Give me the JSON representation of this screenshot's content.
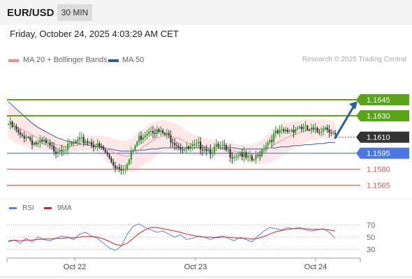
{
  "header": {
    "symbol": "EUR/USD",
    "timeframe": "30 MIN"
  },
  "datetime": "Friday, October 24, 2025 4:03:29 AM CET",
  "legend": {
    "ma20": {
      "label": "MA 20 + Bollinger Bands",
      "color": "#f08f8f"
    },
    "ma50": {
      "label": "MA 50",
      "color": "#2f5b9a"
    },
    "credit": "Research © 2025 Trading Central"
  },
  "rsi_legend": {
    "rsi": {
      "label": "RSI",
      "color": "#5b82d6"
    },
    "ma9": {
      "label": "9MA",
      "color": "#e02020"
    }
  },
  "colors": {
    "resistance": "#5aa41a",
    "support": "#4a78e0",
    "pivot_support": "#e05a5a",
    "up_candle": "#2f9a2f",
    "down_candle": "#333333",
    "arrow": "#2f5b9a",
    "band_fill": "#fde3e3"
  },
  "chart_data": [
    {
      "type": "candlestick",
      "title": "EUR/USD 30 MIN",
      "ylim": [
        1.1557,
        1.1673
      ],
      "x_ticks": [
        "Oct 22",
        "Oct 23",
        "Oct 24"
      ],
      "levels": [
        {
          "value": 1.1645,
          "label": "1.1645",
          "kind": "resistance"
        },
        {
          "value": 1.163,
          "label": "1.1630",
          "kind": "resistance"
        },
        {
          "value": 1.161,
          "label": "1.1610",
          "kind": "last"
        },
        {
          "value": 1.1595,
          "label": "1.1595",
          "kind": "support"
        },
        {
          "value": 1.158,
          "label": "1.1580",
          "kind": "pivot_support"
        },
        {
          "value": 1.1565,
          "label": "1.1565",
          "kind": "pivot_support"
        }
      ],
      "target_arrow": {
        "from": 1.161,
        "to": 1.1645
      },
      "price_path": [
        1.1622,
        1.1618,
        1.161,
        1.1612,
        1.1606,
        1.1603,
        1.1605,
        1.16,
        1.1598,
        1.1601,
        1.16,
        1.1604,
        1.1606,
        1.1607,
        1.1605,
        1.1601,
        1.1598,
        1.159,
        1.1583,
        1.1582,
        1.1584,
        1.1598,
        1.1609,
        1.1614,
        1.1619,
        1.1615,
        1.1613,
        1.161,
        1.1606,
        1.1601,
        1.1598,
        1.16,
        1.1602,
        1.1601,
        1.1598,
        1.16,
        1.16,
        1.1596,
        1.1593,
        1.1596,
        1.159,
        1.1588,
        1.1592,
        1.1602,
        1.1608,
        1.1613,
        1.1614,
        1.1616,
        1.1618,
        1.162,
        1.1617,
        1.1616,
        1.1615,
        1.162,
        1.1618,
        1.1611
      ],
      "ma20": [
        1.1625,
        1.1621,
        1.1618,
        1.1615,
        1.1612,
        1.1609,
        1.1607,
        1.1605,
        1.1603,
        1.1602,
        1.1601,
        1.1602,
        1.1603,
        1.1604,
        1.1604,
        1.1603,
        1.1601,
        1.1598,
        1.1595,
        1.1593,
        1.1592,
        1.1594,
        1.1598,
        1.1602,
        1.1606,
        1.1609,
        1.1611,
        1.1611,
        1.161,
        1.1608,
        1.1605,
        1.1603,
        1.1602,
        1.1601,
        1.16,
        1.16,
        1.1599,
        1.1598,
        1.1597,
        1.1596,
        1.1595,
        1.1594,
        1.1595,
        1.1597,
        1.16,
        1.1604,
        1.1607,
        1.161,
        1.1612,
        1.1614,
        1.1616,
        1.1617,
        1.1617,
        1.1618,
        1.1617,
        1.1615
      ],
      "ma50": [
        1.1643,
        1.1638,
        1.1633,
        1.1628,
        1.1623,
        1.1619,
        1.1616,
        1.1613,
        1.161,
        1.1608,
        1.1606,
        1.1605,
        1.1604,
        1.1603,
        1.1602,
        1.1601,
        1.16,
        1.1599,
        1.1598,
        1.1597,
        1.1597,
        1.1597,
        1.1598,
        1.1598,
        1.1599,
        1.1599,
        1.16,
        1.16,
        1.16,
        1.16,
        1.16,
        1.16,
        1.16,
        1.16,
        1.16,
        1.16,
        1.16,
        1.16,
        1.16,
        1.1599,
        1.1599,
        1.1599,
        1.1599,
        1.1599,
        1.16,
        1.16,
        1.1601,
        1.1601,
        1.1602,
        1.1602,
        1.1603,
        1.1603,
        1.1604,
        1.1604,
        1.1605,
        1.1605
      ],
      "bb_width": [
        0.0016,
        0.0016,
        0.0015,
        0.0014,
        0.0013,
        0.0012,
        0.001,
        0.0008,
        0.0007,
        0.0006,
        0.0006,
        0.0006,
        0.0006,
        0.0006,
        0.0007,
        0.0008,
        0.001,
        0.0012,
        0.0013,
        0.0014,
        0.0015,
        0.0016,
        0.0017,
        0.0017,
        0.0017,
        0.0016,
        0.0015,
        0.0014,
        0.0013,
        0.0012,
        0.0011,
        0.001,
        0.0009,
        0.0008,
        0.0008,
        0.0007,
        0.0007,
        0.0007,
        0.0007,
        0.0007,
        0.0008,
        0.0009,
        0.001,
        0.0012,
        0.0014,
        0.0015,
        0.0015,
        0.0014,
        0.0013,
        0.0012,
        0.0011,
        0.001,
        0.0009,
        0.0009,
        0.0009,
        0.0009
      ]
    },
    {
      "type": "line",
      "title": "RSI",
      "ylim": [
        20,
        80
      ],
      "y_ticks": [
        70,
        50,
        30
      ],
      "series": [
        {
          "name": "RSI",
          "values": [
            42,
            45,
            40,
            48,
            42,
            50,
            46,
            44,
            48,
            52,
            50,
            46,
            55,
            58,
            52,
            48,
            40,
            32,
            28,
            35,
            55,
            68,
            72,
            66,
            62,
            58,
            60,
            55,
            50,
            54,
            46,
            48,
            52,
            50,
            46,
            50,
            52,
            48,
            44,
            50,
            46,
            42,
            52,
            60,
            66,
            64,
            62,
            66,
            64,
            66,
            62,
            60,
            62,
            64,
            58,
            48
          ]
        },
        {
          "name": "9MA",
          "values": [
            44,
            45,
            44,
            45,
            45,
            46,
            47,
            47,
            48,
            48,
            49,
            49,
            50,
            51,
            51,
            50,
            47,
            43,
            38,
            36,
            40,
            48,
            56,
            62,
            66,
            66,
            64,
            62,
            60,
            58,
            55,
            53,
            51,
            50,
            50,
            49,
            50,
            50,
            49,
            48,
            48,
            47,
            48,
            51,
            55,
            59,
            61,
            63,
            64,
            64,
            64,
            63,
            63,
            63,
            62,
            60
          ]
        }
      ]
    }
  ]
}
